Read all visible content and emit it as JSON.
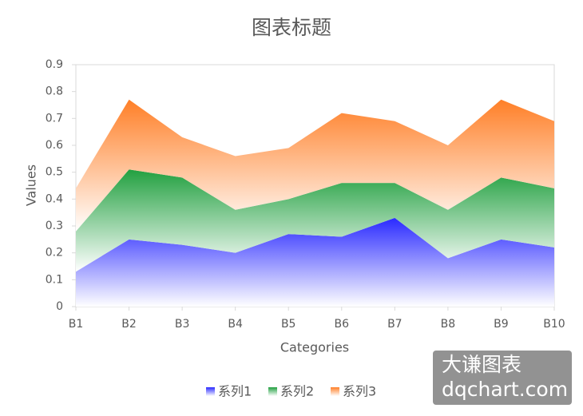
{
  "chart_data": {
    "type": "stacked_area",
    "title": "图表标题",
    "x_label": "Categories",
    "y_label": "Values",
    "categories": [
      "B1",
      "B2",
      "B3",
      "B4",
      "B5",
      "B6",
      "B7",
      "B8",
      "B9",
      "B10"
    ],
    "series": [
      {
        "name": "系列1",
        "color": "#2a2aff",
        "values": [
          0.13,
          0.25,
          0.23,
          0.2,
          0.27,
          0.26,
          0.33,
          0.18,
          0.25,
          0.22
        ]
      },
      {
        "name": "系列2",
        "color": "#22a040",
        "values": [
          0.15,
          0.26,
          0.25,
          0.16,
          0.13,
          0.2,
          0.13,
          0.18,
          0.23,
          0.22
        ]
      },
      {
        "name": "系列3",
        "color": "#ff7f27",
        "values": [
          0.16,
          0.26,
          0.15,
          0.2,
          0.19,
          0.26,
          0.23,
          0.24,
          0.29,
          0.25
        ]
      }
    ],
    "ylim": [
      0,
      0.9
    ],
    "yticks": [
      0,
      0.1,
      0.2,
      0.3,
      0.4,
      0.5,
      0.6,
      0.7,
      0.8,
      0.9
    ],
    "legend": "bottom",
    "watermark": [
      "大谦图表",
      "dqchart.com"
    ]
  }
}
